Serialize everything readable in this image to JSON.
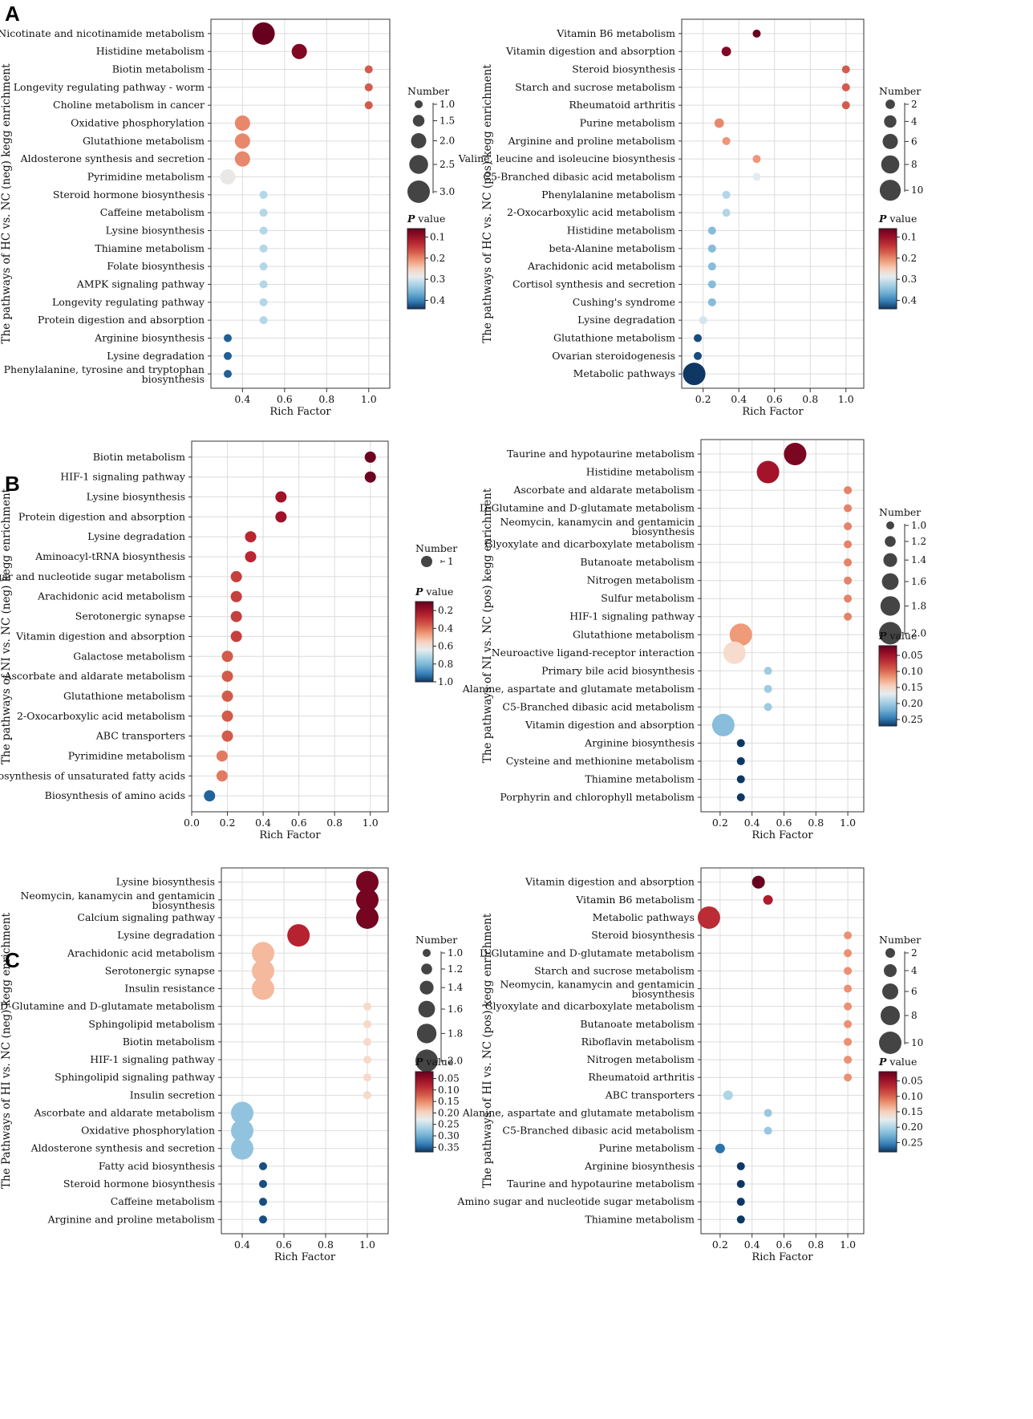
{
  "figure": {
    "panel_labels": [
      "A",
      "B",
      "C"
    ],
    "x_axis_label": "Rich Factor",
    "legend_size_title": "Number",
    "legend_color_title_italic": "P",
    "legend_color_title_rest": " value"
  },
  "chart_data": [
    {
      "panel": "A",
      "side": "left",
      "type": "scatter",
      "ylabel": "The pathways of HC vs. NC (neg) kegg enrichment",
      "xlabel": "Rich Factor",
      "xlim": [
        0.25,
        1.1
      ],
      "xticks": [
        0.4,
        0.6,
        0.8,
        1.0
      ],
      "pathways": [
        "Nicotinate and nicotinamide metabolism",
        "Histidine metabolism",
        "Biotin metabolism",
        "Longevity regulating pathway - worm",
        "Choline metabolism in cancer",
        "Oxidative phosphorylation",
        "Glutathione metabolism",
        "Aldosterone synthesis and secretion",
        "Pyrimidine metabolism",
        "Steroid hormone biosynthesis",
        "Caffeine metabolism",
        "Lysine biosynthesis",
        "Thiamine metabolism",
        "Folate biosynthesis",
        "AMPK signaling pathway",
        "Longevity regulating pathway",
        "Protein digestion and absorption",
        "Arginine biosynthesis",
        "Lysine degradation",
        "Phenylalanine, tyrosine and tryptophan biosynthesis"
      ],
      "rich_factor": [
        0.5,
        0.67,
        1.0,
        1.0,
        1.0,
        0.4,
        0.4,
        0.4,
        0.33,
        0.5,
        0.5,
        0.5,
        0.5,
        0.5,
        0.5,
        0.5,
        0.5,
        0.33,
        0.33,
        0.33
      ],
      "number": [
        3,
        2,
        1,
        1,
        1,
        2,
        2,
        2,
        2,
        1,
        1,
        1,
        1,
        1,
        1,
        1,
        1,
        1,
        1,
        1
      ],
      "p_value": [
        0.06,
        0.08,
        0.17,
        0.17,
        0.17,
        0.2,
        0.2,
        0.2,
        0.28,
        0.32,
        0.32,
        0.32,
        0.32,
        0.32,
        0.32,
        0.32,
        0.32,
        0.42,
        0.42,
        0.42
      ],
      "size_legend": [
        1.0,
        1.5,
        2.0,
        2.5,
        3.0
      ],
      "color_legend": {
        "min": 0.06,
        "max": 0.44,
        "ticks": [
          0.1,
          0.2,
          0.3,
          0.4
        ]
      }
    },
    {
      "panel": "A",
      "side": "right",
      "type": "scatter",
      "ylabel": "The pathways of HC vs. NC (pos) kegg enrichment",
      "xlabel": "Rich Factor",
      "xlim": [
        0.08,
        1.1
      ],
      "xticks": [
        0.2,
        0.4,
        0.6,
        0.8,
        1.0
      ],
      "pathways": [
        "Vitamin B6 metabolism",
        "Vitamin digestion and absorption",
        "Steroid biosynthesis",
        "Starch and sucrose metabolism",
        "Rheumatoid arthritis",
        "Purine metabolism",
        "Arginine and proline metabolism",
        "Valine, leucine and isoleucine biosynthesis",
        "C5-Branched dibasic acid metabolism",
        "Phenylalanine metabolism",
        "2-Oxocarboxylic acid metabolism",
        "Histidine metabolism",
        "beta-Alanine metabolism",
        "Arachidonic acid metabolism",
        "Cortisol synthesis and secretion",
        "Cushing's syndrome",
        "Lysine degradation",
        "Glutathione metabolism",
        "Ovarian steroidogenesis",
        "Metabolic pathways"
      ],
      "rich_factor": [
        0.5,
        0.33,
        1.0,
        1.0,
        1.0,
        0.29,
        0.33,
        0.5,
        0.5,
        0.33,
        0.33,
        0.25,
        0.25,
        0.25,
        0.25,
        0.25,
        0.2,
        0.17,
        0.17,
        0.15
      ],
      "number": [
        1,
        2,
        1,
        1,
        1,
        2,
        1,
        1,
        1,
        1,
        1,
        1,
        1,
        1,
        1,
        1,
        1,
        1,
        1,
        11
      ],
      "p_value": [
        0.06,
        0.08,
        0.17,
        0.17,
        0.17,
        0.2,
        0.21,
        0.21,
        0.29,
        0.32,
        0.32,
        0.35,
        0.35,
        0.35,
        0.35,
        0.35,
        0.3,
        0.43,
        0.43,
        0.45
      ],
      "size_legend": [
        2,
        4,
        6,
        8,
        10
      ],
      "color_legend": {
        "min": 0.06,
        "max": 0.44,
        "ticks": [
          0.1,
          0.2,
          0.3,
          0.4
        ]
      }
    },
    {
      "panel": "B",
      "side": "left",
      "type": "scatter",
      "ylabel": "The pathways of NI vs. NC (neg) kegg enrichment",
      "xlabel": "Rich Factor",
      "xlim": [
        0.0,
        1.1
      ],
      "xticks": [
        0.0,
        0.2,
        0.4,
        0.6,
        0.8,
        1.0
      ],
      "pathways": [
        "Biotin metabolism",
        "HIF-1 signaling pathway",
        "Lysine biosynthesis",
        "Protein digestion and absorption",
        "Lysine degradation",
        "Aminoacyl-tRNA biosynthesis",
        "Amino sugar and nucleotide sugar metabolism",
        "Arachidonic acid metabolism",
        "Serotonergic synapse",
        "Vitamin digestion and absorption",
        "Galactose metabolism",
        "Ascorbate and aldarate metabolism",
        "Glutathione metabolism",
        "2-Oxocarboxylic acid metabolism",
        "ABC transporters",
        "Pyrimidine metabolism",
        "Biosynthesis of unsaturated fatty acids",
        "Biosynthesis of amino acids"
      ],
      "rich_factor": [
        1.0,
        1.0,
        0.5,
        0.5,
        0.33,
        0.33,
        0.25,
        0.25,
        0.25,
        0.25,
        0.2,
        0.2,
        0.2,
        0.2,
        0.2,
        0.17,
        0.17,
        0.1
      ],
      "number": [
        1,
        1,
        1,
        1,
        1,
        1,
        1,
        1,
        1,
        1,
        1,
        1,
        1,
        1,
        1,
        1,
        1,
        1
      ],
      "p_value": [
        0.11,
        0.11,
        0.2,
        0.2,
        0.26,
        0.26,
        0.31,
        0.31,
        0.31,
        0.31,
        0.36,
        0.36,
        0.36,
        0.36,
        0.36,
        0.41,
        0.41,
        0.95
      ],
      "size_legend": [
        1
      ],
      "color_legend": {
        "min": 0.1,
        "max": 1.0,
        "ticks": [
          0.2,
          0.4,
          0.6,
          0.8,
          1.0
        ]
      }
    },
    {
      "panel": "B",
      "side": "right",
      "type": "scatter",
      "ylabel": "The pathways of NI vs. NC (pos) kegg enrichment",
      "xlabel": "Rich Factor",
      "xlim": [
        0.08,
        1.1
      ],
      "xticks": [
        0.2,
        0.4,
        0.6,
        0.8,
        1.0
      ],
      "pathways": [
        "Taurine and hypotaurine metabolism",
        "Histidine metabolism",
        "Ascorbate and aldarate metabolism",
        "D-Glutamine and D-glutamate metabolism",
        "Neomycin, kanamycin and gentamicin biosynthesis",
        "Glyoxylate and dicarboxylate metabolism",
        "Butanoate metabolism",
        "Nitrogen metabolism",
        "Sulfur metabolism",
        "HIF-1 signaling pathway",
        "Glutathione metabolism",
        "Neuroactive ligand-receptor interaction",
        "Primary bile acid biosynthesis",
        "Alanine, aspartate and glutamate metabolism",
        "C5-Branched dibasic acid metabolism",
        "Vitamin digestion and absorption",
        "Arginine biosynthesis",
        "Cysteine and methionine metabolism",
        "Thiamine metabolism",
        "Porphyrin and chlorophyll metabolism"
      ],
      "rich_factor": [
        0.67,
        0.5,
        1.0,
        1.0,
        1.0,
        1.0,
        1.0,
        1.0,
        1.0,
        1.0,
        0.33,
        0.29,
        0.5,
        0.5,
        0.5,
        0.22,
        0.33,
        0.33,
        0.33,
        0.33
      ],
      "number": [
        2,
        2,
        1,
        1,
        1,
        1,
        1,
        1,
        1,
        1,
        2,
        2,
        1,
        1,
        1,
        2,
        1,
        1,
        1,
        1
      ],
      "p_value": [
        0.03,
        0.05,
        0.11,
        0.11,
        0.11,
        0.11,
        0.11,
        0.11,
        0.11,
        0.11,
        0.12,
        0.15,
        0.2,
        0.2,
        0.2,
        0.21,
        0.27,
        0.27,
        0.27,
        0.27
      ],
      "size_legend": [
        1.0,
        1.2,
        1.4,
        1.6,
        1.8,
        2.0
      ],
      "color_legend": {
        "min": 0.02,
        "max": 0.27,
        "ticks": [
          0.05,
          0.1,
          0.15,
          0.2,
          0.25
        ]
      }
    },
    {
      "panel": "C",
      "side": "left",
      "type": "scatter",
      "ylabel": "The Pathways of HI vs. NC (neg) kegg enrichment",
      "xlabel": "Rich Factor",
      "xlim": [
        0.3,
        1.1
      ],
      "xticks": [
        0.4,
        0.6,
        0.8,
        1.0
      ],
      "pathways": [
        "Lysine biosynthesis",
        "Neomycin, kanamycin and gentamicin biosynthesis",
        "Calcium signaling pathway",
        "Lysine degradation",
        "Arachidonic acid metabolism",
        "Serotonergic synapse",
        "Insulin resistance",
        "D-Glutamine and D-glutamate metabolism",
        "Sphingolipid metabolism",
        "Biotin metabolism",
        "HIF-1 signaling pathway",
        "Sphingolipid signaling pathway",
        "Insulin secretion",
        "Ascorbate and aldarate metabolism",
        "Oxidative phosphorylation",
        "Aldosterone synthesis and secretion",
        "Fatty acid biosynthesis",
        "Steroid hormone biosynthesis",
        "Caffeine metabolism",
        "Arginine and proline metabolism"
      ],
      "rich_factor": [
        1.0,
        1.0,
        1.0,
        0.67,
        0.5,
        0.5,
        0.5,
        1.0,
        1.0,
        1.0,
        1.0,
        1.0,
        1.0,
        0.4,
        0.4,
        0.4,
        0.5,
        0.5,
        0.5,
        0.5
      ],
      "number": [
        2,
        2,
        2,
        2,
        2,
        2,
        2,
        1,
        1,
        1,
        1,
        1,
        1,
        2,
        2,
        2,
        1,
        1,
        1,
        1
      ],
      "p_value": [
        0.03,
        0.03,
        0.03,
        0.08,
        0.18,
        0.18,
        0.18,
        0.2,
        0.2,
        0.2,
        0.2,
        0.2,
        0.2,
        0.28,
        0.28,
        0.28,
        0.36,
        0.36,
        0.36,
        0.36
      ],
      "size_legend": [
        1.0,
        1.2,
        1.4,
        1.6,
        1.8,
        2.0
      ],
      "color_legend": {
        "min": 0.02,
        "max": 0.37,
        "ticks": [
          0.05,
          0.1,
          0.15,
          0.2,
          0.25,
          0.3,
          0.35
        ]
      }
    },
    {
      "panel": "C",
      "side": "right",
      "type": "scatter",
      "ylabel": "The pathways of HI vs. NC (pos) kegg enrichment",
      "xlabel": "Rich Factor",
      "xlim": [
        0.08,
        1.1
      ],
      "xticks": [
        0.2,
        0.4,
        0.6,
        0.8,
        1.0
      ],
      "pathways": [
        "Vitamin digestion and absorption",
        "Vitamin B6 metabolism",
        "Metabolic pathways",
        "Steroid biosynthesis",
        "D-Glutamine and D-glutamate metabolism",
        "Starch and sucrose metabolism",
        "Neomycin, kanamycin and gentamicin biosynthesis",
        "Glyoxylate and dicarboxylate metabolism",
        "Butanoate metabolism",
        "Riboflavin metabolism",
        "Nitrogen metabolism",
        "Rheumatoid arthritis",
        "ABC transporters",
        "Alanine, aspartate and glutamate metabolism",
        "C5-Branched dibasic acid metabolism",
        "Purine metabolism",
        "Arginine biosynthesis",
        "Taurine and hypotaurine metabolism",
        "Amino sugar and nucleotide sugar metabolism",
        "Thiamine metabolism"
      ],
      "rich_factor": [
        0.44,
        0.5,
        0.13,
        1.0,
        1.0,
        1.0,
        1.0,
        1.0,
        1.0,
        1.0,
        1.0,
        1.0,
        0.25,
        0.5,
        0.5,
        0.2,
        0.33,
        0.33,
        0.33,
        0.33
      ],
      "number": [
        4,
        2,
        10,
        1,
        1,
        1,
        1,
        1,
        1,
        1,
        1,
        1,
        2,
        1,
        1,
        2,
        1,
        1,
        1,
        1
      ],
      "p_value": [
        0.02,
        0.06,
        0.07,
        0.12,
        0.12,
        0.12,
        0.12,
        0.12,
        0.12,
        0.12,
        0.12,
        0.12,
        0.2,
        0.21,
        0.21,
        0.26,
        0.28,
        0.28,
        0.28,
        0.28
      ],
      "size_legend": [
        2,
        4,
        6,
        8,
        10
      ],
      "color_legend": {
        "min": 0.02,
        "max": 0.28,
        "ticks": [
          0.05,
          0.1,
          0.15,
          0.2,
          0.25
        ]
      }
    }
  ]
}
